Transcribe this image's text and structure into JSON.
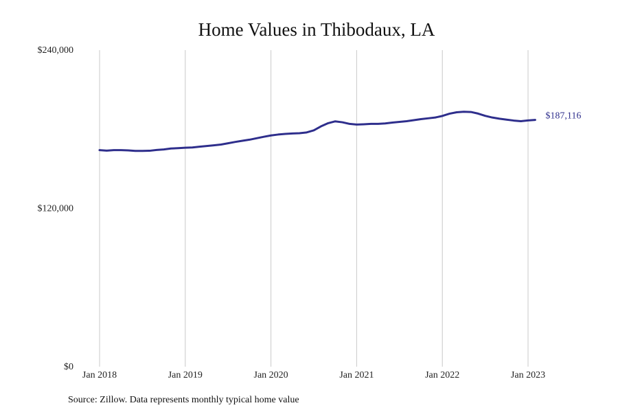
{
  "chart_data": {
    "type": "line",
    "title": "Home Values in Thibodaux, LA",
    "xlabel": "",
    "ylabel": "",
    "ylim": [
      0,
      240000
    ],
    "y_ticks": [
      {
        "value": 0,
        "label": "$0"
      },
      {
        "value": 120000,
        "label": "$120,000"
      },
      {
        "value": 240000,
        "label": "$240,000"
      }
    ],
    "x_ticks": [
      {
        "value": "2018-01",
        "label": "Jan 2018"
      },
      {
        "value": "2019-01",
        "label": "Jan 2019"
      },
      {
        "value": "2020-01",
        "label": "Jan 2020"
      },
      {
        "value": "2021-01",
        "label": "Jan 2021"
      },
      {
        "value": "2022-01",
        "label": "Jan 2022"
      },
      {
        "value": "2023-01",
        "label": "Jan 2023"
      }
    ],
    "grid": {
      "vertical": true,
      "horizontal": false
    },
    "color": "#2e2e8c",
    "end_label": "$187,116",
    "source": "Source: Zillow. Data represents monthly typical home value",
    "series": [
      {
        "x": [
          "2018-01",
          "2018-02",
          "2018-03",
          "2018-04",
          "2018-05",
          "2018-06",
          "2018-07",
          "2018-08",
          "2018-09",
          "2018-10",
          "2018-11",
          "2018-12",
          "2019-01",
          "2019-02",
          "2019-03",
          "2019-04",
          "2019-05",
          "2019-06",
          "2019-07",
          "2019-08",
          "2019-09",
          "2019-10",
          "2019-11",
          "2019-12",
          "2020-01",
          "2020-02",
          "2020-03",
          "2020-04",
          "2020-05",
          "2020-06",
          "2020-07",
          "2020-08",
          "2020-09",
          "2020-10",
          "2020-11",
          "2020-12",
          "2021-01",
          "2021-02",
          "2021-03",
          "2021-04",
          "2021-05",
          "2021-06",
          "2021-07",
          "2021-08",
          "2021-09",
          "2021-10",
          "2021-11",
          "2021-12",
          "2022-01",
          "2022-02",
          "2022-03",
          "2022-04",
          "2022-05",
          "2022-06",
          "2022-07",
          "2022-08",
          "2022-09",
          "2022-10",
          "2022-11",
          "2022-12",
          "2023-01",
          "2023-02"
        ],
        "values": [
          164200,
          163800,
          164200,
          164200,
          164000,
          163600,
          163600,
          163700,
          164300,
          164700,
          165400,
          165700,
          166000,
          166200,
          166800,
          167300,
          167800,
          168400,
          169400,
          170400,
          171300,
          172100,
          173200,
          174300,
          175300,
          176000,
          176500,
          176800,
          177000,
          177600,
          179200,
          182200,
          184600,
          186000,
          185300,
          184100,
          183600,
          183800,
          184100,
          184100,
          184400,
          185100,
          185600,
          186100,
          186900,
          187700,
          188300,
          188900,
          190100,
          191800,
          192900,
          193300,
          193100,
          191900,
          190200,
          188900,
          188000,
          187300,
          186600,
          186100,
          186700,
          187116
        ]
      }
    ]
  }
}
